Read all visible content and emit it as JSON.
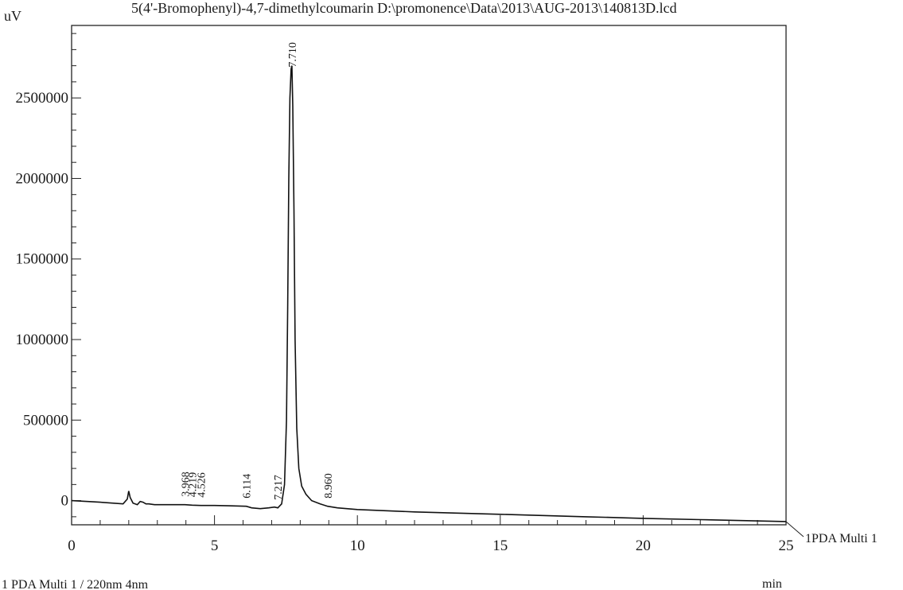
{
  "chart_data": {
    "type": "line",
    "title": "5(4'-Bromophenyl)-4,7-dimethylcoumarin D:\\promonence\\Data\\2013\\AUG-2013\\140813D.lcd",
    "xlabel": "min",
    "ylabel": "uV",
    "xlim": [
      0,
      25
    ],
    "ylim": [
      -150000,
      2950000
    ],
    "x_ticks": [
      0,
      5,
      10,
      15,
      20,
      25
    ],
    "y_ticks": [
      0,
      500000,
      1000000,
      1500000,
      2000000,
      2500000
    ],
    "x_tick_labels": [
      "0",
      "5",
      "10",
      "15",
      "20",
      "25"
    ],
    "y_tick_labels": [
      "0",
      "500000",
      "1000000",
      "1500000",
      "2000000",
      "2500000"
    ],
    "series": [
      {
        "name": "PDA Multi 1",
        "x": [
          0,
          1.0,
          1.8,
          1.95,
          2.0,
          2.05,
          2.15,
          2.3,
          2.4,
          2.5,
          2.6,
          2.7,
          2.9,
          3.2,
          3.6,
          3.968,
          4.219,
          4.526,
          5.0,
          5.5,
          6.114,
          6.3,
          6.6,
          6.9,
          7.1,
          7.217,
          7.35,
          7.45,
          7.52,
          7.56,
          7.6,
          7.64,
          7.68,
          7.71,
          7.74,
          7.78,
          7.82,
          7.88,
          7.95,
          8.05,
          8.2,
          8.4,
          8.7,
          8.96,
          9.3,
          10,
          12,
          15,
          18,
          20,
          22,
          25
        ],
        "y": [
          0,
          -10000,
          -20000,
          10000,
          60000,
          20000,
          -15000,
          -25000,
          -5000,
          -10000,
          -20000,
          -20000,
          -25000,
          -25000,
          -25000,
          -25000,
          -28000,
          -30000,
          -30000,
          -32000,
          -35000,
          -45000,
          -50000,
          -45000,
          -40000,
          -45000,
          -20000,
          100000,
          500000,
          1200000,
          2000000,
          2500000,
          2680000,
          2700000,
          2450000,
          1800000,
          1000000,
          450000,
          200000,
          90000,
          40000,
          0,
          -20000,
          -35000,
          -45000,
          -55000,
          -70000,
          -85000,
          -100000,
          -110000,
          -118000,
          -130000
        ]
      }
    ],
    "peak_labels": [
      {
        "x": 3.968,
        "y": -25000,
        "text": "3.968"
      },
      {
        "x": 4.219,
        "y": -28000,
        "text": "4.219"
      },
      {
        "x": 4.526,
        "y": -30000,
        "text": "4.526"
      },
      {
        "x": 6.114,
        "y": -35000,
        "text": "6.114"
      },
      {
        "x": 7.217,
        "y": -45000,
        "text": "7.217"
      },
      {
        "x": 7.71,
        "y": 2700000,
        "text": "7.710"
      },
      {
        "x": 8.96,
        "y": -35000,
        "text": "8.960"
      }
    ],
    "trace_label": "1PDA Multi 1",
    "footer": "1 PDA Multi 1 / 220nm 4nm",
    "grid": false
  }
}
